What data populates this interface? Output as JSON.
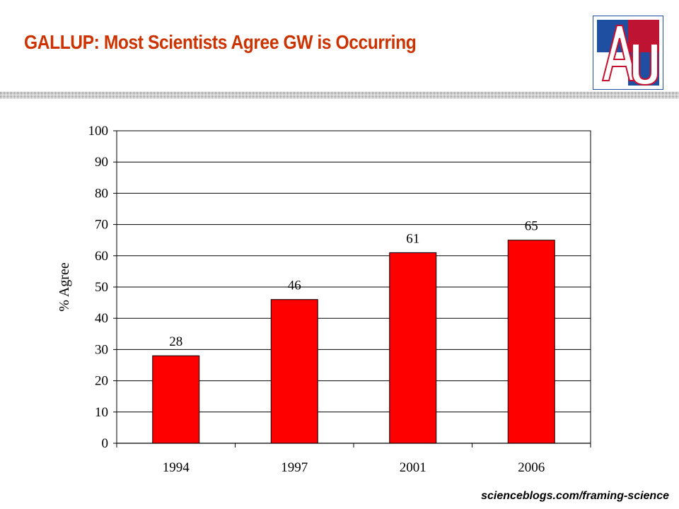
{
  "slide": {
    "title": "GALLUP:  Most Scientists Agree GW is Occurring",
    "footer": "scienceblogs.com/framing-science",
    "logo_icon": "american-university-au-logo",
    "colors": {
      "title": "#cc3300",
      "bar": "#ff0000",
      "logo_blue": "#1f4fa0",
      "logo_red": "#c8102e"
    }
  },
  "chart_data": {
    "type": "bar",
    "categories": [
      "1994",
      "1997",
      "2001",
      "2006"
    ],
    "values": [
      28,
      46,
      61,
      65
    ],
    "data_labels": [
      "28",
      "46",
      "61",
      "65"
    ],
    "title": "",
    "xlabel": "",
    "ylabel": "% Agree",
    "ylim": [
      0,
      100
    ],
    "yticks": [
      0,
      10,
      20,
      30,
      40,
      50,
      60,
      70,
      80,
      90,
      100
    ],
    "grid": true,
    "legend": "none",
    "bar_color": "#ff0000"
  }
}
